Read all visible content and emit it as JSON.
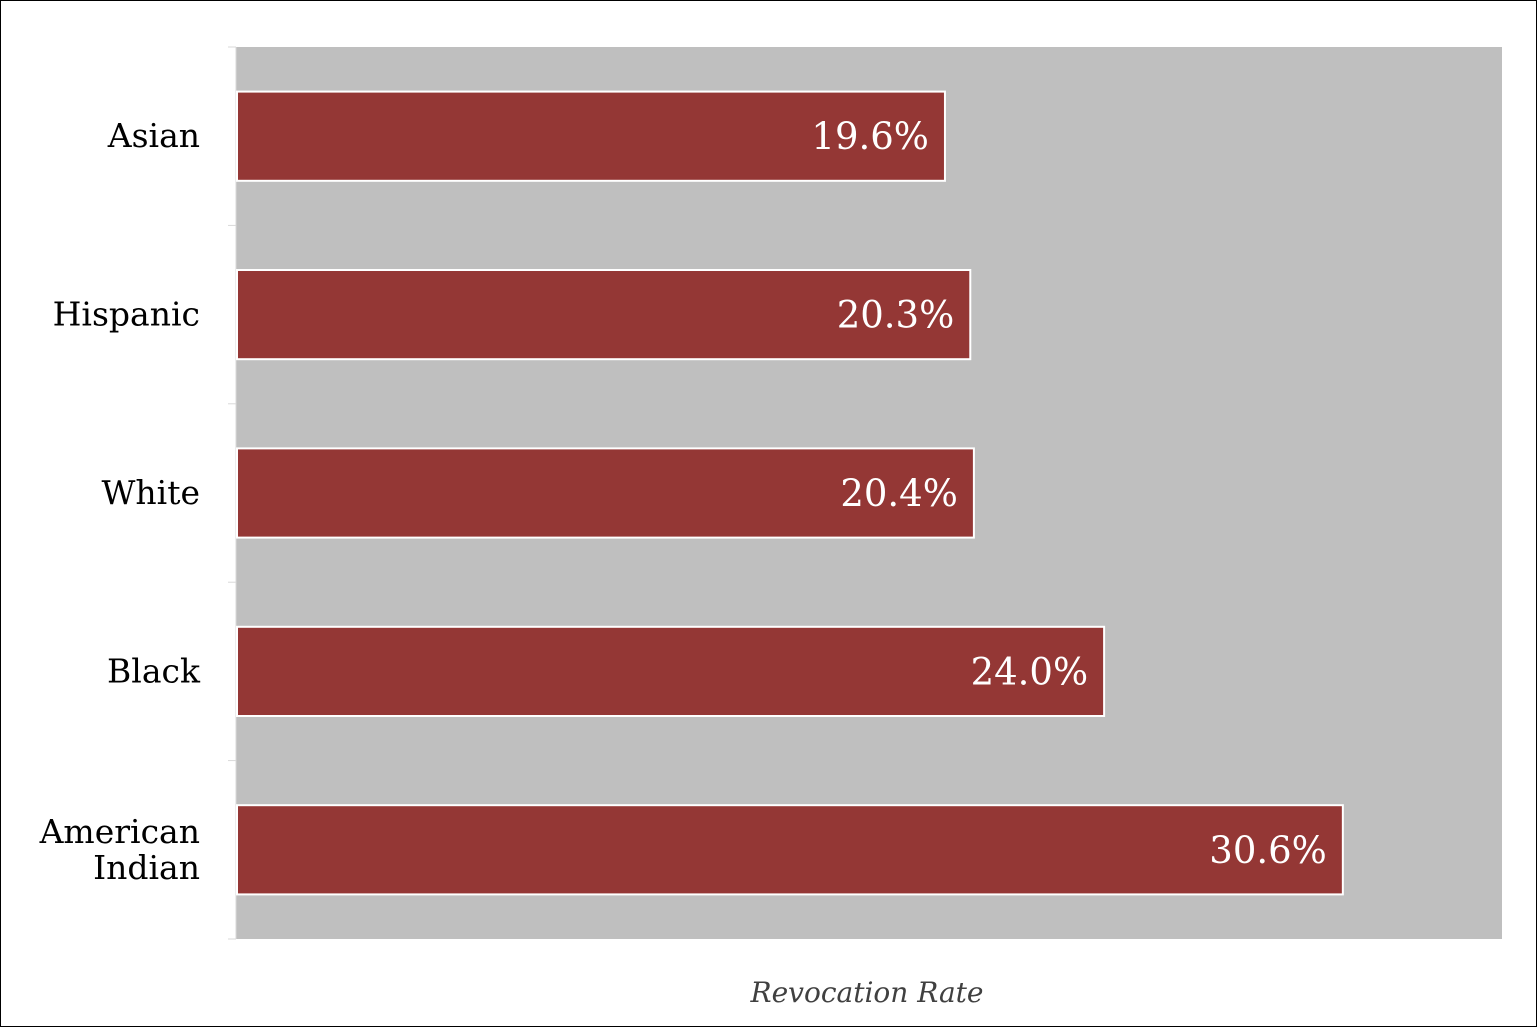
{
  "chart_data": {
    "type": "bar",
    "orientation": "horizontal",
    "categories": [
      "Asian",
      "Hispanic",
      "White",
      "Black",
      "American Indian"
    ],
    "category_lines": [
      [
        "Asian"
      ],
      [
        "Hispanic"
      ],
      [
        "White"
      ],
      [
        "Black"
      ],
      [
        "American",
        "Indian"
      ]
    ],
    "values": [
      19.6,
      20.3,
      20.4,
      24.0,
      30.6
    ],
    "value_labels": [
      "19.6%",
      "20.3%",
      "20.4%",
      "24.0%",
      "30.6%"
    ],
    "xlabel": "Revocation Rate",
    "ylabel": "",
    "title": "",
    "xlim": [
      0,
      35
    ],
    "grid": false,
    "legend": "none",
    "colors": {
      "bar": "#943735",
      "bar_border": "#ffffff",
      "plot_background": "#bfbfbf",
      "axis_line": "#d9d9d9",
      "axis_title": "#404040"
    }
  }
}
